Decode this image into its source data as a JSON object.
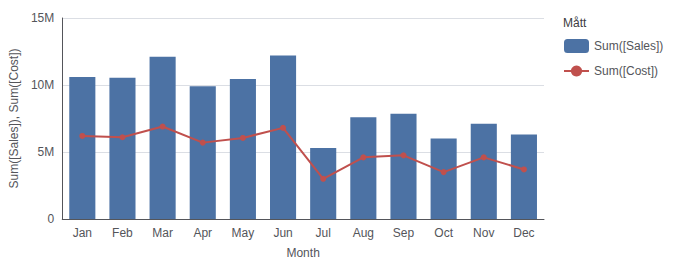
{
  "chart_data": {
    "type": "bar",
    "xlabel": "Month",
    "ylabel": "Sum([Sales]), Sum([Cost])",
    "legend_title": "Mått",
    "categories": [
      "Jan",
      "Feb",
      "Mar",
      "Apr",
      "May",
      "Jun",
      "Jul",
      "Aug",
      "Sep",
      "Oct",
      "Nov",
      "Dec"
    ],
    "series": [
      {
        "name": "Sum([Sales])",
        "type": "bar",
        "color": "#4c72a4",
        "values": [
          10.6,
          10.55,
          12.1,
          9.9,
          10.45,
          12.2,
          5.3,
          7.6,
          7.85,
          6.0,
          7.1,
          6.3
        ]
      },
      {
        "name": "Sum([Cost])",
        "type": "line",
        "color": "#c0504d",
        "marker": "circle",
        "values": [
          6.2,
          6.1,
          6.9,
          5.7,
          6.05,
          6.8,
          3.0,
          4.6,
          4.75,
          3.5,
          4.6,
          3.7
        ]
      }
    ],
    "ylim": [
      0,
      15
    ],
    "yticks": [
      0,
      {
        "value": 5,
        "label": "5M"
      },
      {
        "value": 10,
        "label": "10M"
      },
      {
        "value": 15,
        "label": "15M"
      }
    ],
    "grid": true,
    "legend": "right"
  }
}
